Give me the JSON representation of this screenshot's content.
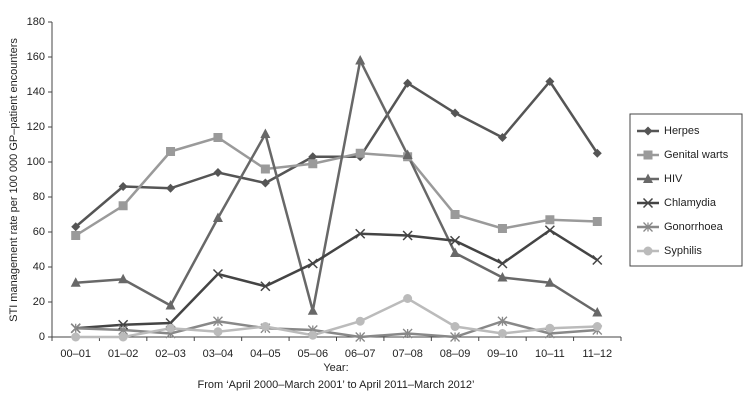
{
  "chart_data": {
    "type": "line",
    "y_label": "STI management rate per 100 000 GP–patient encounters",
    "x_label": "Year:",
    "x_sublabel": "From ‘April 2000–March 2001’ to April 2011–March 2012’",
    "categories": [
      "00–01",
      "01–02",
      "02–03",
      "03–04",
      "04–05",
      "05–06",
      "06–07",
      "07–08",
      "08–09",
      "09–10",
      "10–11",
      "11–12"
    ],
    "ylim": [
      0,
      180
    ],
    "yticks": [
      0,
      20,
      40,
      60,
      80,
      100,
      120,
      140,
      160,
      180
    ],
    "grid": false,
    "legend": "right",
    "series": [
      {
        "name": "Herpes",
        "color": "#555555",
        "marker": "diamond",
        "values": [
          63,
          86,
          85,
          94,
          88,
          103,
          103,
          145,
          128,
          114,
          146,
          105
        ]
      },
      {
        "name": "Genital warts",
        "color": "#9a9a9a",
        "marker": "square",
        "values": [
          58,
          75,
          106,
          114,
          96,
          99,
          105,
          103,
          70,
          62,
          67,
          66
        ]
      },
      {
        "name": "HIV",
        "color": "#686868",
        "marker": "triangle",
        "values": [
          31,
          33,
          18,
          68,
          116,
          15,
          158,
          104,
          48,
          34,
          31,
          14
        ]
      },
      {
        "name": "Chlamydia",
        "color": "#444444",
        "marker": "x",
        "values": [
          5,
          7,
          8,
          36,
          29,
          42,
          59,
          58,
          55,
          42,
          61,
          44
        ]
      },
      {
        "name": "Gonorrhoea",
        "color": "#888888",
        "marker": "asterisk",
        "values": [
          5,
          4,
          2,
          9,
          5,
          4,
          0,
          2,
          0,
          9,
          2,
          4
        ]
      },
      {
        "name": "Syphilis",
        "color": "#bbbbbb",
        "marker": "circle",
        "values": [
          0,
          0,
          5,
          3,
          6,
          1,
          9,
          22,
          6,
          2,
          5,
          6
        ]
      }
    ]
  }
}
